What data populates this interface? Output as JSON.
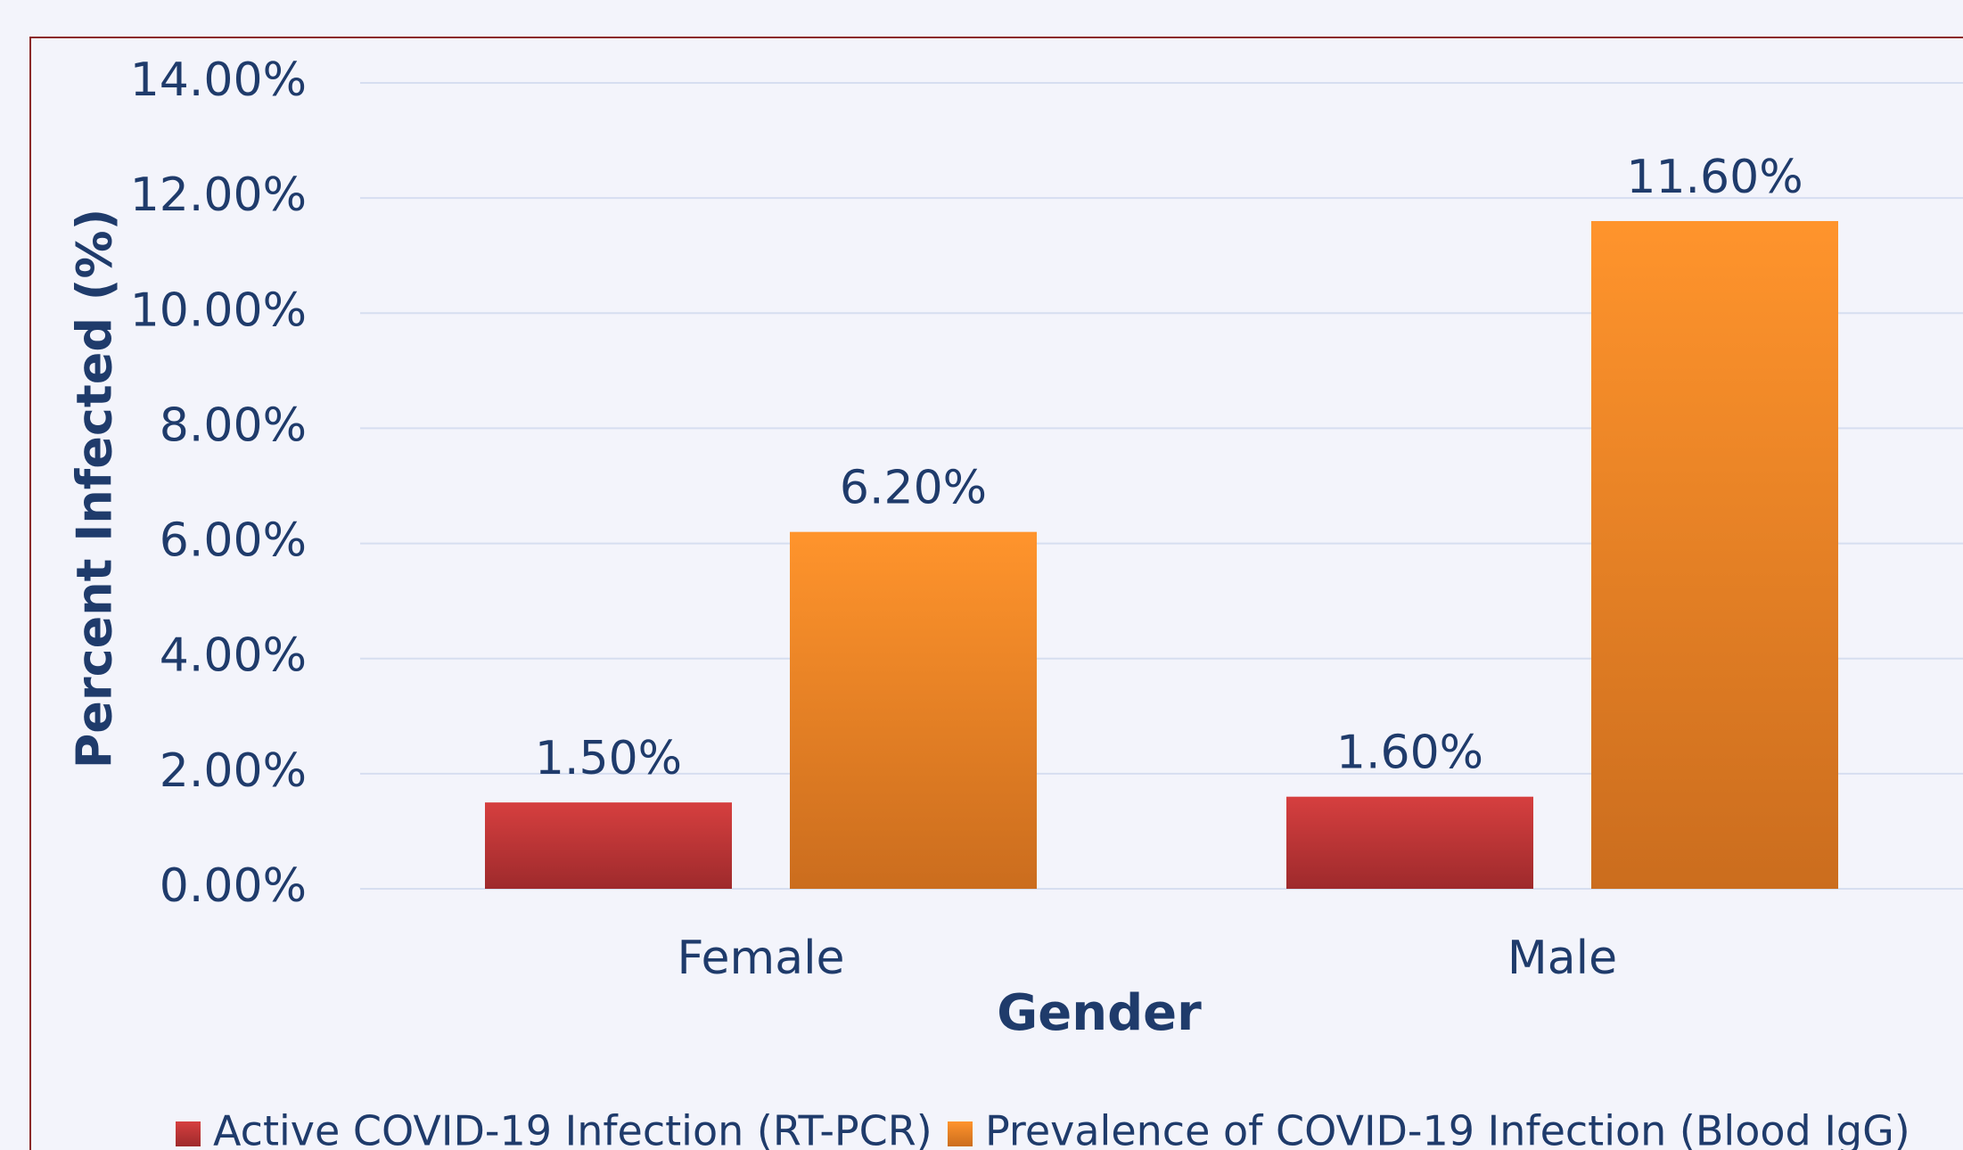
{
  "chart_data": {
    "type": "bar",
    "categories": [
      "Female",
      "Male"
    ],
    "series": [
      {
        "name": "Active COVID-19 Infection (RT-PCR)",
        "color": "#c9373a",
        "values": [
          1.5,
          1.6
        ],
        "value_labels": [
          "1.50%",
          "1.60%"
        ]
      },
      {
        "name": "Prevalence of COVID-19 Infection (Blood IgG)",
        "color": "#f48a28",
        "values": [
          6.2,
          11.6
        ],
        "value_labels": [
          "6.20%",
          "11.60%"
        ]
      }
    ],
    "x_label": "Gender",
    "y_label": "Percent Infected (%)",
    "ylim": [
      0,
      14
    ],
    "yticks": [
      {
        "value": 0,
        "label": "0.00%"
      },
      {
        "value": 2,
        "label": "2.00%"
      },
      {
        "value": 4,
        "label": "4.00%"
      },
      {
        "value": 6,
        "label": "6.00%"
      },
      {
        "value": 8,
        "label": "8.00%"
      },
      {
        "value": 10,
        "label": "10.00%"
      },
      {
        "value": 12,
        "label": "12.00%"
      },
      {
        "value": 14,
        "label": "14.00%"
      }
    ],
    "grid": true,
    "legend": "bottom"
  }
}
